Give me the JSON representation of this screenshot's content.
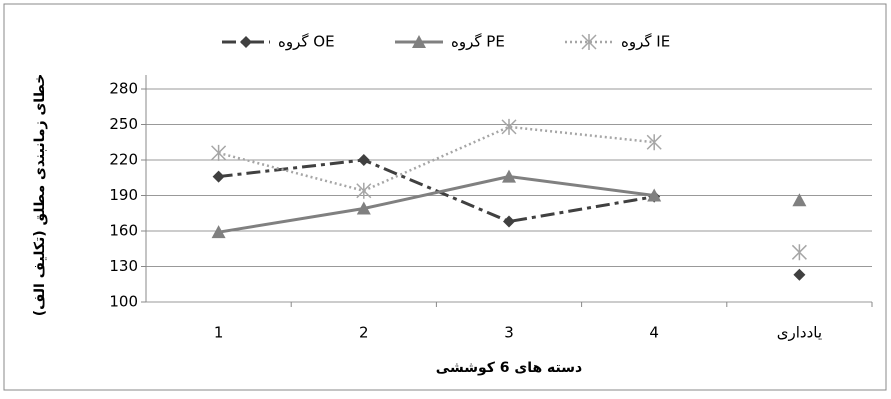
{
  "chart_data": {
    "type": "line",
    "categories": [
      "1",
      "2",
      "3",
      "4",
      "یادداری"
    ],
    "connected": [
      true,
      true,
      true,
      true,
      false
    ],
    "series": [
      {
        "name": "گروه OE",
        "color": "#404040",
        "marker": "diamond",
        "dash": "dash-dot",
        "values": [
          206,
          220,
          168,
          189,
          123
        ]
      },
      {
        "name": "گروه PE",
        "color": "#808080",
        "marker": "triangle",
        "dash": "solid",
        "values": [
          159,
          179,
          206,
          190,
          186
        ]
      },
      {
        "name": "گروه IE",
        "color": "#a6a6a6",
        "marker": "asterisk",
        "dash": "dotted",
        "values": [
          226,
          194,
          248,
          235,
          142
        ]
      }
    ],
    "ylim": [
      100,
      280
    ],
    "yticks": [
      100,
      130,
      160,
      190,
      220,
      250,
      280
    ],
    "grid": true,
    "ylabel": "خطای زمانبندی مطلق (تکلیف الف)",
    "xlabel": "دسته های 6 کوششی",
    "legend": "top"
  }
}
